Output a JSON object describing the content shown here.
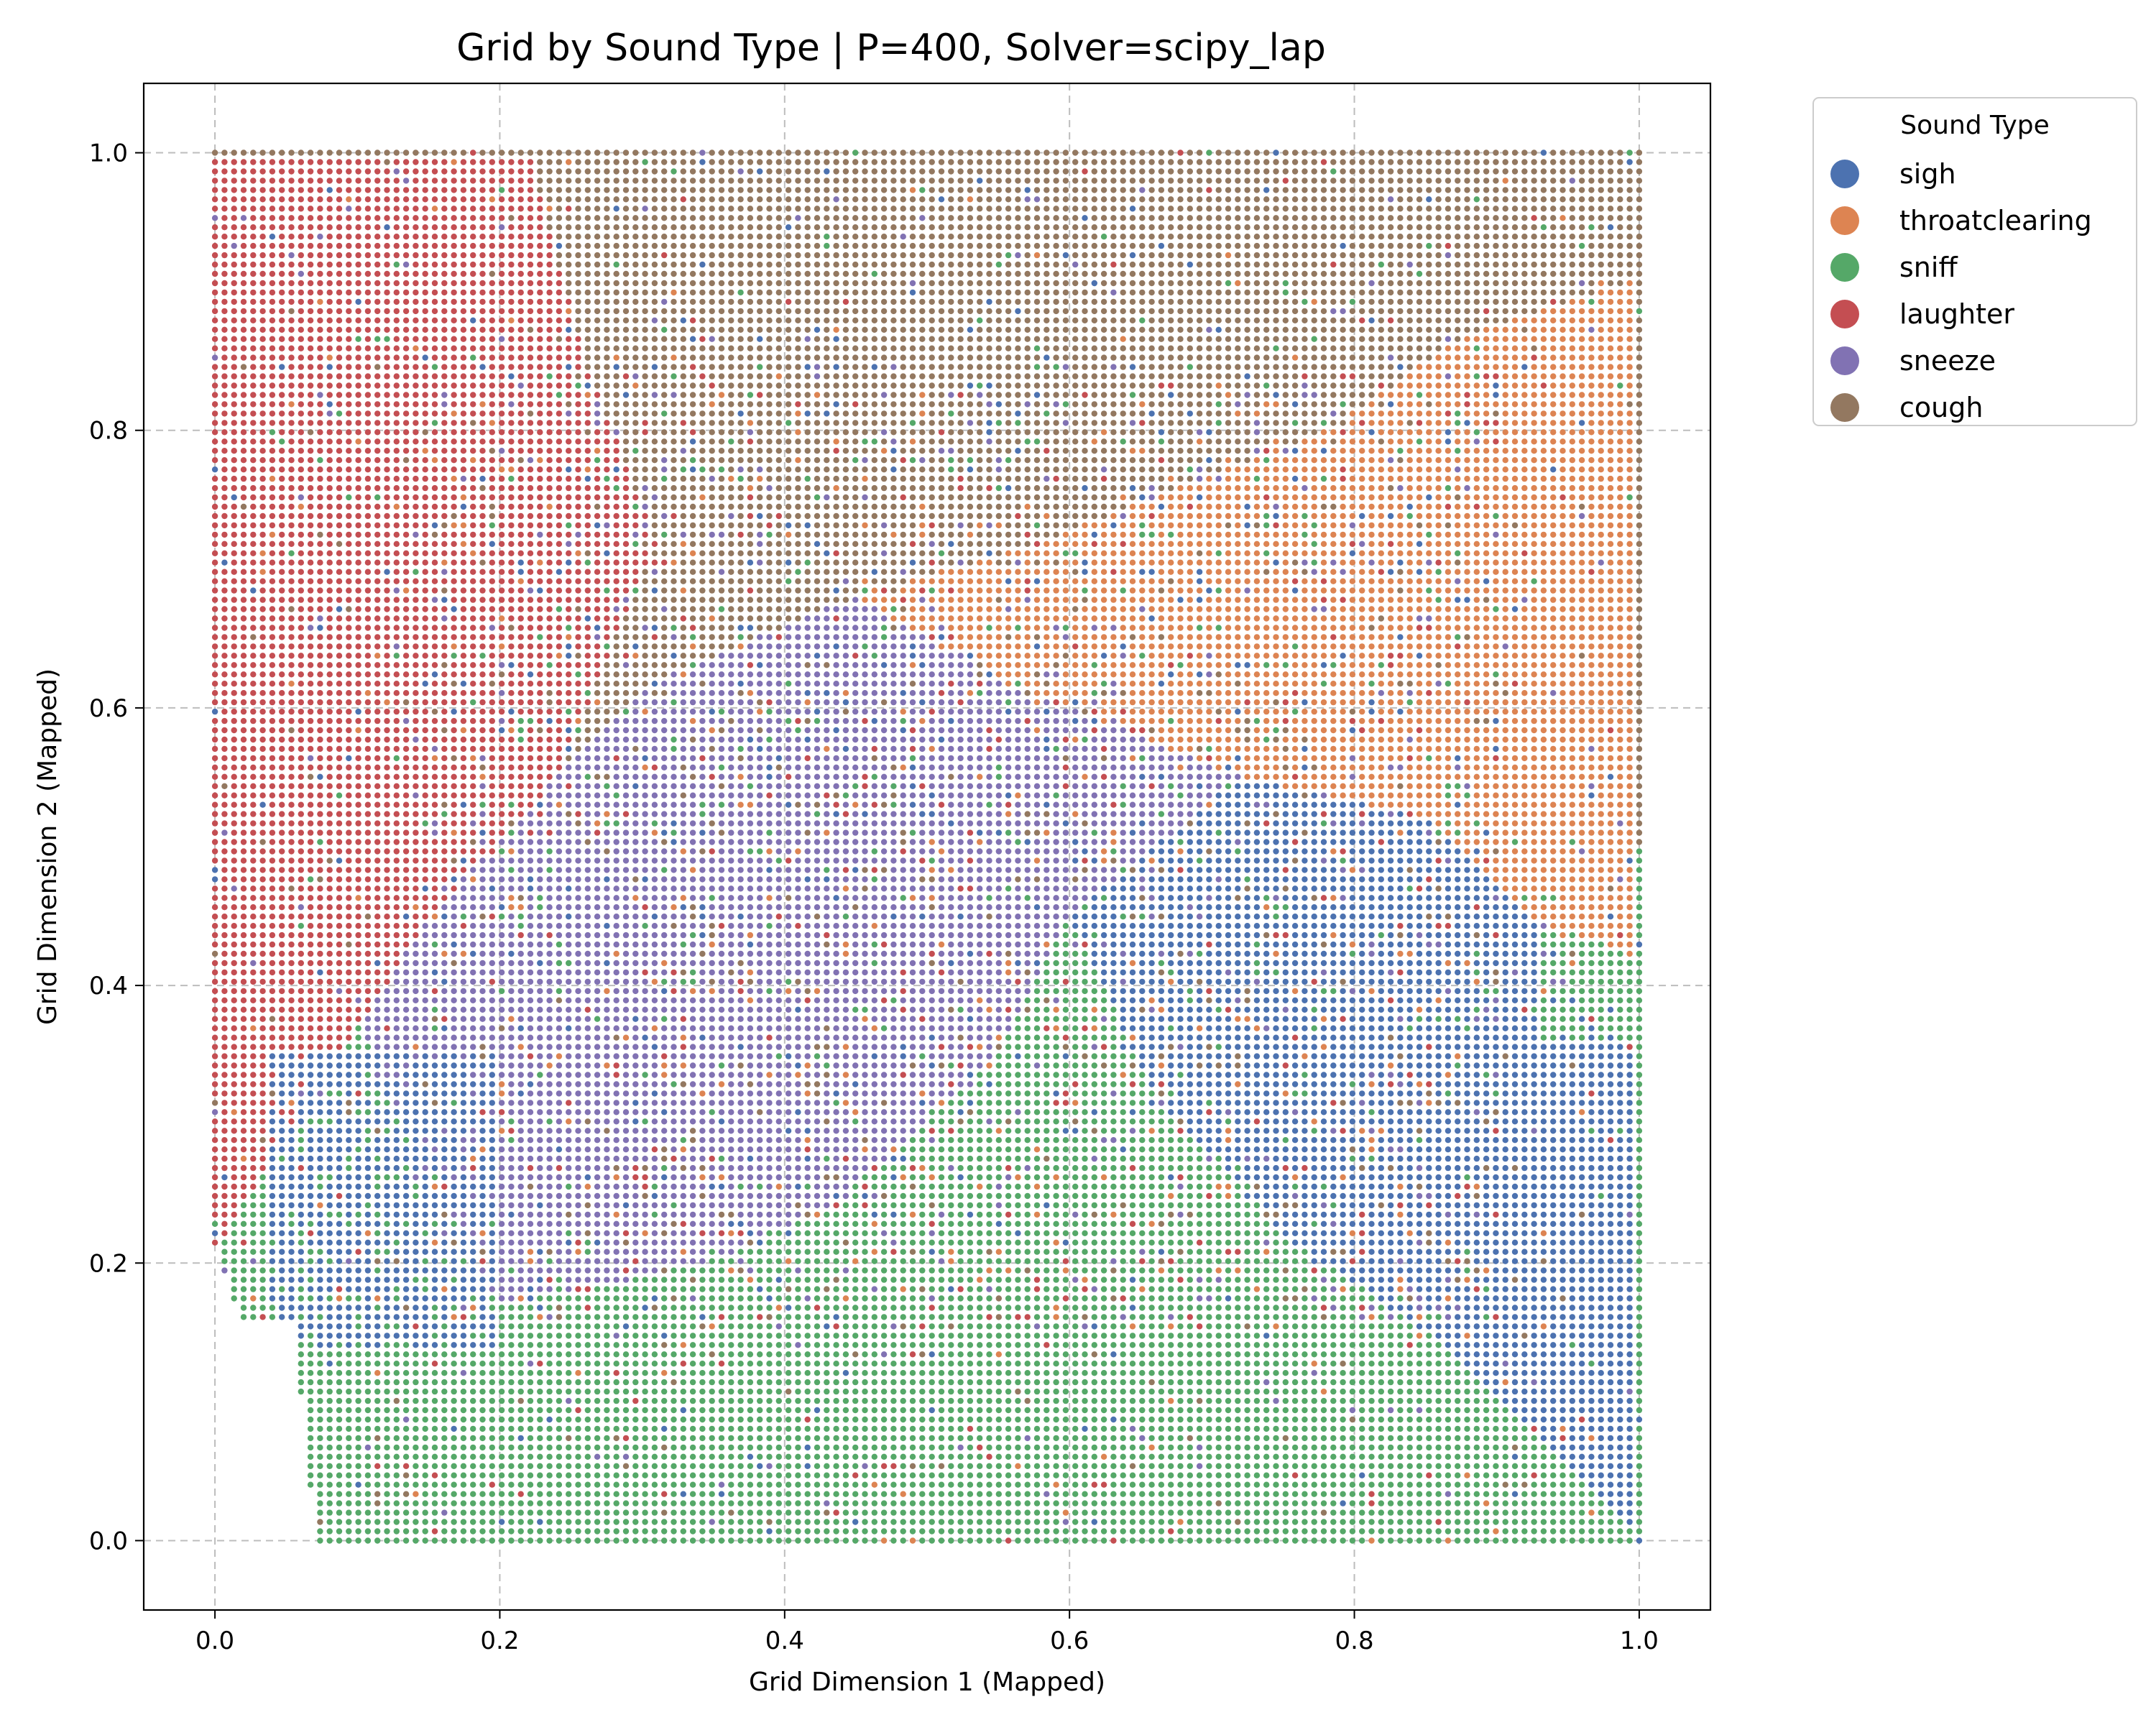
{
  "chart_data": {
    "type": "scatter",
    "title": "Grid by Sound Type | P=400, Solver=scipy_lap",
    "xlabel": "Grid Dimension 1 (Mapped)",
    "ylabel": "Grid Dimension 2 (Mapped)",
    "xlim": [
      -0.05,
      1.05
    ],
    "ylim": [
      -0.05,
      1.05
    ],
    "xticks": [
      "0.0",
      "0.2",
      "0.4",
      "0.6",
      "0.8",
      "1.0"
    ],
    "yticks": [
      "0.0",
      "0.2",
      "0.4",
      "0.6",
      "0.8",
      "1.0"
    ],
    "grid": true,
    "grid_style": "dashed",
    "legend": {
      "title": "Sound Type",
      "placement": "outside-top-right",
      "entries": [
        {
          "label": "sigh",
          "color": "#4c72b0"
        },
        {
          "label": "throatclearing",
          "color": "#dd8452"
        },
        {
          "label": "sniff",
          "color": "#55a868"
        },
        {
          "label": "laughter",
          "color": "#c44e52"
        },
        {
          "label": "sneeze",
          "color": "#8172b3"
        },
        {
          "label": "cough",
          "color": "#937860"
        }
      ]
    },
    "grid_points": {
      "grid_size": [
        150,
        150
      ],
      "x_range": [
        0,
        1
      ],
      "y_range": [
        0,
        1
      ],
      "description": "Dense lattice of points; dominant sound-type regions with scattered mixing near boundaries."
    },
    "regions": [
      {
        "label": "laughter",
        "approx_polygon": [
          [
            0,
            0.21
          ],
          [
            0,
            1.0
          ],
          [
            0.22,
            1.0
          ],
          [
            0.26,
            0.85
          ],
          [
            0.31,
            0.72
          ],
          [
            0.24,
            0.55
          ],
          [
            0.15,
            0.45
          ],
          [
            0.07,
            0.32
          ]
        ]
      },
      {
        "label": "cough",
        "approx_polygon": [
          [
            0.22,
            1.0
          ],
          [
            1.0,
            1.0
          ],
          [
            1.0,
            0.91
          ],
          [
            0.88,
            0.87
          ],
          [
            0.78,
            0.8
          ],
          [
            0.68,
            0.76
          ],
          [
            0.58,
            0.72
          ],
          [
            0.45,
            0.7
          ],
          [
            0.33,
            0.74
          ],
          [
            0.26,
            0.85
          ]
        ]
      },
      {
        "label": "throatclearing",
        "approx_polygon": [
          [
            0.58,
            0.72
          ],
          [
            0.68,
            0.76
          ],
          [
            0.78,
            0.8
          ],
          [
            0.88,
            0.87
          ],
          [
            1.0,
            0.91
          ],
          [
            1.0,
            0.42
          ],
          [
            0.92,
            0.45
          ],
          [
            0.85,
            0.52
          ],
          [
            0.72,
            0.55
          ],
          [
            0.55,
            0.62
          ],
          [
            0.45,
            0.68
          ]
        ]
      },
      {
        "label": "sneeze",
        "approx_polygon": [
          [
            0.15,
            0.45
          ],
          [
            0.24,
            0.55
          ],
          [
            0.31,
            0.62
          ],
          [
            0.45,
            0.68
          ],
          [
            0.55,
            0.62
          ],
          [
            0.72,
            0.55
          ],
          [
            0.6,
            0.45
          ],
          [
            0.55,
            0.35
          ],
          [
            0.45,
            0.25
          ],
          [
            0.35,
            0.2
          ],
          [
            0.2,
            0.17
          ],
          [
            0.14,
            0.28
          ],
          [
            0.1,
            0.38
          ]
        ]
      },
      {
        "label": "sigh",
        "approx_polygon": [
          [
            0.6,
            0.45
          ],
          [
            0.72,
            0.55
          ],
          [
            0.85,
            0.52
          ],
          [
            0.92,
            0.45
          ],
          [
            1.0,
            0.36
          ],
          [
            1.0,
            0.0
          ],
          [
            0.92,
            0.08
          ],
          [
            0.85,
            0.15
          ],
          [
            0.75,
            0.22
          ],
          [
            0.66,
            0.32
          ]
        ]
      },
      {
        "label": "sniff",
        "approx_polygon": [
          [
            0.07,
            0.0
          ],
          [
            1.0,
            0.0
          ],
          [
            0.92,
            0.08
          ],
          [
            0.85,
            0.15
          ],
          [
            0.75,
            0.22
          ],
          [
            0.66,
            0.32
          ],
          [
            0.55,
            0.35
          ],
          [
            0.45,
            0.25
          ],
          [
            0.35,
            0.2
          ],
          [
            0.2,
            0.17
          ],
          [
            0.07,
            0.15
          ]
        ]
      }
    ],
    "side_patches": [
      {
        "label": "sniff",
        "x_range": [
          0.93,
          1.0
        ],
        "y_range": [
          0.36,
          0.42
        ]
      },
      {
        "label": "sigh",
        "x_range": [
          0.04,
          0.2
        ],
        "y_range": [
          0.14,
          0.35
        ]
      }
    ]
  }
}
